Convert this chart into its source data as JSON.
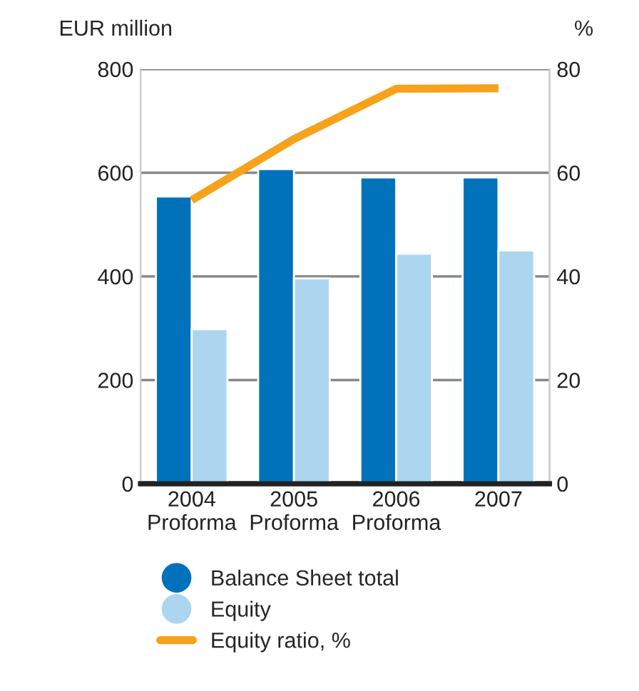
{
  "chart_data": {
    "type": "bar",
    "categories": [
      "2004\nProforma",
      "2005\nProforma",
      "2006\nProforma",
      "2007"
    ],
    "ylabel": "EUR million",
    "y2label": "%",
    "series": [
      {
        "name": "Balance Sheet total",
        "color": "#0072bc",
        "values": [
          554,
          607,
          591,
          591
        ]
      },
      {
        "name": "Equity",
        "color": "#acd6f0",
        "values": [
          298,
          396,
          444,
          450
        ]
      },
      {
        "name": "Equity ratio, %",
        "type": "line",
        "axis": "y2",
        "color": "#f7a21b",
        "values": [
          54.7,
          66.5,
          76.2,
          76.3
        ]
      }
    ],
    "ylim": [
      0,
      800
    ],
    "yticks": [
      0,
      200,
      400,
      600,
      800
    ],
    "y2lim": [
      0,
      80
    ],
    "y2ticks": [
      0,
      20,
      40,
      60,
      80
    ],
    "grid": "y",
    "legend": "bottom"
  }
}
